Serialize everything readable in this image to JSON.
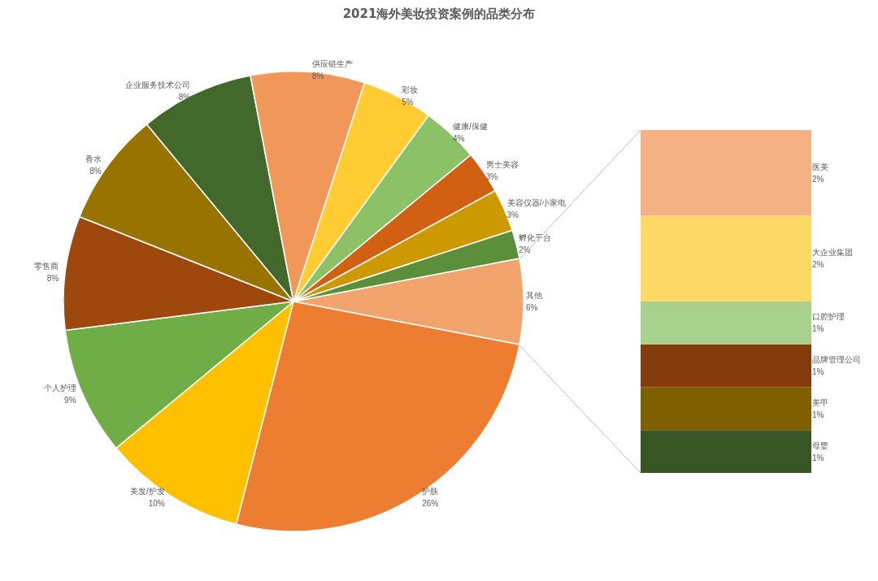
{
  "chart_data": [
    {
      "type": "pie",
      "title": "2021海外美妆投资案例的品类分布",
      "categories": [
        "其他",
        "护肤",
        "美发/护发",
        "个人护理",
        "零售商",
        "香水",
        "企业服务技术公司",
        "供应链生产",
        "彩妆",
        "健康/保健",
        "男士美容",
        "美容仪器/小家电",
        "孵化平台"
      ],
      "values": [
        6,
        26,
        10,
        9,
        8,
        8,
        8,
        8,
        5,
        4,
        3,
        3,
        2
      ],
      "value_labels": [
        "6%",
        "26%",
        "10%",
        "9%",
        "8%",
        "8%",
        "8%",
        "8%",
        "5%",
        "4%",
        "3%",
        "3%",
        "2%"
      ],
      "colors": [
        "#f2a46c",
        "#ed7d31",
        "#ffc000",
        "#70ad47",
        "#9e480e",
        "#997300",
        "#43682b",
        "#f1975a",
        "#ffcd33",
        "#8cc168",
        "#d26012",
        "#cc9a00",
        "#5b8f3a"
      ]
    },
    {
      "type": "bar",
      "stacked": true,
      "categories": [
        null
      ],
      "series": [
        {
          "name": "母婴",
          "color": "#375623",
          "values": [
            1
          ],
          "value_labels": [
            "1%"
          ]
        },
        {
          "name": "美甲",
          "color": "#7f6000",
          "values": [
            1
          ],
          "value_labels": [
            "1%"
          ]
        },
        {
          "name": "品牌管理公司",
          "color": "#843c0c",
          "values": [
            1
          ],
          "value_labels": [
            "1%"
          ]
        },
        {
          "name": "口腔护理",
          "color": "#a9d18e",
          "values": [
            1
          ],
          "value_labels": [
            "1%"
          ]
        },
        {
          "name": "大企业集团",
          "color": "#ffd966",
          "values": [
            2
          ],
          "value_labels": [
            "2%"
          ]
        },
        {
          "name": "医美",
          "color": "#f4b183",
          "values": [
            2
          ],
          "value_labels": [
            "2%"
          ]
        }
      ]
    }
  ]
}
